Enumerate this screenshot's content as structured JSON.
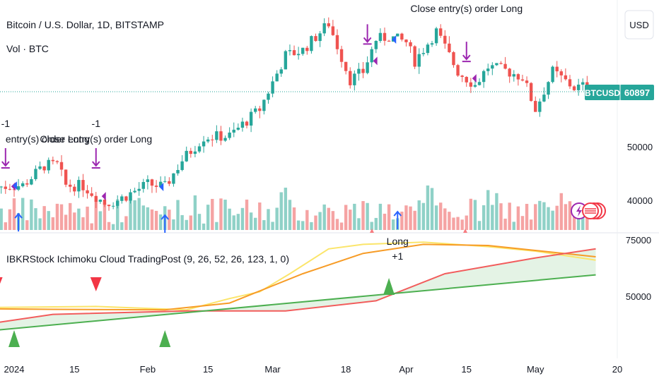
{
  "header": {
    "symbol_title": "Bitcoin / U.S. Dollar, 1D, BITSTAMP",
    "volume_label": "Vol · BTC",
    "currency_button": "USD"
  },
  "indicator": {
    "legend": "IBKRStock Ichimoku Cloud TradingPost (9, 26, 52, 26, 123, 1, 0)"
  },
  "price_badge": {
    "ticker": "BTCUSD",
    "price": "60897"
  },
  "chart_data": [
    {
      "type": "candlestick",
      "title": "Bitcoin / U.S. Dollar, 1D, BITSTAMP",
      "x_labels": [
        "2024",
        "15",
        "Feb",
        "15",
        "Mar",
        "18",
        "Apr",
        "15",
        "May",
        "20"
      ],
      "y_ticks": [
        "50000",
        "40000"
      ],
      "last_price": 60897,
      "close_path": [
        [
          "2023-12-28",
          42500
        ],
        [
          "2024-01-03",
          42800
        ],
        [
          "2024-01-08",
          46500
        ],
        [
          "2024-01-11",
          46600
        ],
        [
          "2024-01-13",
          42800
        ],
        [
          "2024-01-17",
          42700
        ],
        [
          "2024-01-22",
          39500
        ],
        [
          "2024-01-25",
          40000
        ],
        [
          "2024-02-01",
          43000
        ],
        [
          "2024-02-05",
          42500
        ],
        [
          "2024-02-09",
          47500
        ],
        [
          "2024-02-14",
          51800
        ],
        [
          "2024-02-20",
          52000
        ],
        [
          "2024-02-27",
          57000
        ],
        [
          "2024-03-04",
          67000
        ],
        [
          "2024-03-08",
          68000
        ],
        [
          "2024-03-14",
          73000
        ],
        [
          "2024-03-19",
          62500
        ],
        [
          "2024-03-22",
          64000
        ],
        [
          "2024-03-25",
          70000
        ],
        [
          "2024-03-28",
          70500
        ],
        [
          "2024-04-01",
          69500
        ],
        [
          "2024-04-03",
          66000
        ],
        [
          "2024-04-08",
          71500
        ],
        [
          "2024-04-13",
          64000
        ],
        [
          "2024-04-17",
          61500
        ],
        [
          "2024-04-20",
          64900
        ],
        [
          "2024-04-24",
          64200
        ],
        [
          "2024-04-28",
          63000
        ],
        [
          "2024-05-01",
          57000
        ],
        [
          "2024-05-05",
          64000
        ],
        [
          "2024-05-10",
          61000
        ],
        [
          "2024-05-14",
          61500
        ]
      ],
      "volume_axis": "Vol · BTC",
      "signals": [
        {
          "date": "2023-12-30",
          "kind": "close",
          "labels": [
            "-1",
            "entry(s) order Long"
          ]
        },
        {
          "date": "2024-01-02",
          "kind": "long",
          "labels": []
        },
        {
          "date": "2024-01-20",
          "kind": "close",
          "labels": [
            "-1",
            "Close entry(s) order Long"
          ]
        },
        {
          "date": "2024-02-05",
          "kind": "long",
          "labels": []
        },
        {
          "date": "2024-03-23",
          "kind": "close",
          "labels": []
        },
        {
          "date": "2024-03-30",
          "kind": "long",
          "labels": [
            "Long",
            "+1"
          ]
        },
        {
          "date": "2024-04-15",
          "kind": "close",
          "labels": [
            "Close entry(s) order Long"
          ]
        }
      ]
    },
    {
      "type": "line",
      "title": "IBKRStock Ichimoku Cloud TradingPost (9, 26, 52, 26, 123, 1, 0)",
      "y_ticks": [
        "75000",
        "50000"
      ],
      "series": [
        {
          "color": "#fbe56a",
          "values": [
            [
              "2023-12-25",
              45000
            ],
            [
              "2024-01-20",
              45500
            ],
            [
              "2024-02-10",
              44000
            ],
            [
              "2024-02-20",
              49000
            ],
            [
              "2024-02-27",
              52000
            ],
            [
              "2024-03-05",
              60000
            ],
            [
              "2024-03-14",
              71000
            ],
            [
              "2024-03-22",
              73000
            ],
            [
              "2024-04-05",
              74000
            ],
            [
              "2024-04-20",
              72000
            ],
            [
              "2024-05-01",
              70000
            ],
            [
              "2024-05-15",
              66000
            ]
          ]
        },
        {
          "color": "#f79c27",
          "values": [
            [
              "2023-12-25",
              44500
            ],
            [
              "2024-01-10",
              44200
            ],
            [
              "2024-02-05",
              44000
            ],
            [
              "2024-02-20",
              47000
            ],
            [
              "2024-03-08",
              60000
            ],
            [
              "2024-03-22",
              69000
            ],
            [
              "2024-04-05",
              73000
            ],
            [
              "2024-04-20",
              72500
            ],
            [
              "2024-05-15",
              67500
            ]
          ]
        },
        {
          "color": "#f25c5c",
          "values": [
            [
              "2023-12-25",
              37500
            ],
            [
              "2024-01-10",
              42000
            ],
            [
              "2024-02-10",
              43500
            ],
            [
              "2024-03-04",
              43500
            ],
            [
              "2024-03-25",
              48000
            ],
            [
              "2024-04-10",
              60000
            ],
            [
              "2024-05-01",
              67000
            ],
            [
              "2024-05-15",
              71000
            ]
          ]
        },
        {
          "color": "#4caf50",
          "values": [
            [
              "2023-12-25",
              34500
            ],
            [
              "2024-05-15",
              59500
            ]
          ]
        }
      ],
      "markers": [
        {
          "date": "2023-12-28",
          "kind": "sell"
        },
        {
          "date": "2024-01-20",
          "kind": "sell"
        },
        {
          "date": "2024-01-01",
          "kind": "buy"
        },
        {
          "date": "2024-02-05",
          "kind": "buy"
        },
        {
          "date": "2024-03-28",
          "kind": "buy"
        }
      ]
    }
  ]
}
